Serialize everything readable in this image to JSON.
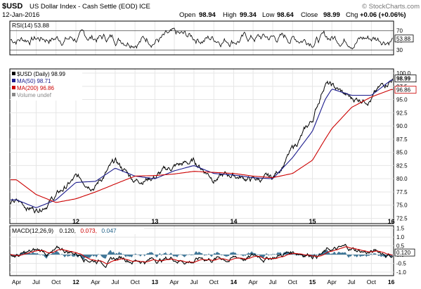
{
  "header": {
    "symbol": "$USD",
    "name": "US Dollar Index - Cash Settle (EOD)",
    "exchange": "ICE",
    "date": "12-Jan-2016",
    "watermark": "© StockCharts.com",
    "quote": {
      "open_label": "Open",
      "open": "98.94",
      "high_label": "High",
      "high": "99.34",
      "low_label": "Low",
      "low": "98.64",
      "close_label": "Close",
      "close": "98.99",
      "chg_label": "Chg",
      "chg": "+0.06 (+0.06%)"
    }
  },
  "colors": {
    "price": "#000000",
    "ma50": "#1a1a8c",
    "ma200": "#cc0000",
    "macd_line": "#000000",
    "macd_signal": "#cc0000",
    "histogram": "#1f5f86",
    "grid": "#e6e6e6",
    "frame": "#000000"
  },
  "chart_data": [
    {
      "type": "line",
      "panel": "rsi",
      "legend": "RSI(14) 53.88",
      "current": "53.88",
      "y_ticks": [
        "30",
        "50",
        "70"
      ],
      "ylim": [
        20,
        90
      ],
      "reference_lines": [
        30,
        70
      ]
    },
    {
      "type": "line",
      "panel": "price",
      "legend": [
        {
          "label": "$USD (Daily) 98.99",
          "color": "#000000"
        },
        {
          "label": "MA(50) 98.71",
          "color": "#1a1a8c"
        },
        {
          "label": "MA(200) 96.86",
          "color": "#cc0000"
        },
        {
          "label": "Volume undef",
          "color": "#888888"
        }
      ],
      "y_ticks": [
        "72.5",
        "75.0",
        "77.5",
        "80.0",
        "82.5",
        "85.0",
        "87.5",
        "90.0",
        "92.5",
        "95.0",
        "97.5",
        "100.0"
      ],
      "ylim": [
        71.5,
        100.8
      ],
      "tags": {
        "close": "98.99",
        "ma200": "96.86"
      },
      "x": [
        "2011-04",
        "2011-07",
        "2011-10",
        "2012-01",
        "2012-04",
        "2012-07",
        "2012-10",
        "2013-01",
        "2013-04",
        "2013-07",
        "2013-10",
        "2014-01",
        "2014-04",
        "2014-07",
        "2014-10",
        "2015-01",
        "2015-03",
        "2015-04",
        "2015-07",
        "2015-10",
        "2016-01"
      ],
      "series": [
        {
          "name": "$USD",
          "values": [
            75.5,
            74.2,
            76.8,
            80.0,
            79.0,
            83.0,
            79.8,
            80.5,
            82.3,
            83.2,
            80.3,
            80.7,
            79.8,
            80.0,
            85.5,
            91.0,
            98.5,
            97.5,
            95.0,
            95.5,
            99.0
          ]
        },
        {
          "name": "MA(50)",
          "values": [
            76.0,
            74.5,
            76.0,
            79.3,
            79.5,
            82.0,
            80.5,
            80.0,
            81.5,
            82.5,
            81.0,
            80.7,
            80.2,
            80.0,
            84.0,
            89.0,
            95.0,
            97.0,
            95.8,
            95.8,
            98.7
          ]
        },
        {
          "name": "MA(200)",
          "values": [
            79.8,
            77.0,
            75.5,
            76.2,
            77.5,
            79.0,
            80.5,
            80.6,
            80.9,
            81.4,
            81.2,
            81.0,
            80.5,
            80.2,
            81.0,
            83.5,
            87.5,
            89.5,
            93.5,
            95.5,
            96.9
          ]
        }
      ]
    },
    {
      "type": "line",
      "panel": "macd",
      "legend": [
        {
          "label": "MACD(12,26,9)",
          "color": "#000000"
        },
        {
          "label": "0.120",
          "color": "#000000"
        },
        {
          "label": "0.073",
          "color": "#cc0000"
        },
        {
          "label": "0.047",
          "color": "#1f5f86"
        }
      ],
      "y_ticks": [
        "-1.0",
        "-0.5",
        "0.0",
        "0.5",
        "1.0",
        "1.5"
      ],
      "ylim": [
        -1.2,
        1.65
      ],
      "tag": "0.120",
      "x_tick_labels": [
        "Apr",
        "Jul",
        "Oct",
        "12",
        "Apr",
        "Jul",
        "Oct",
        "13",
        "Apr",
        "Jul",
        "Oct",
        "14",
        "Apr",
        "Jul",
        "Oct",
        "15",
        "Apr",
        "Jul",
        "Oct",
        "16"
      ],
      "bold_tick_labels": [
        "12",
        "13",
        "14",
        "15",
        "16"
      ]
    }
  ]
}
